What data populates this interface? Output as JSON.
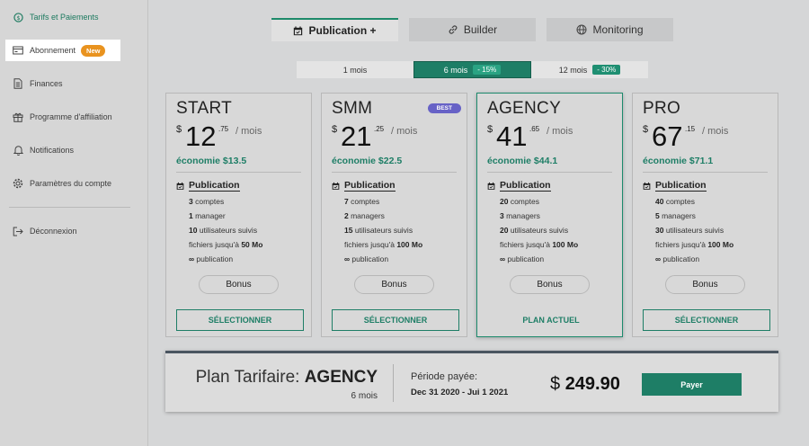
{
  "sidebar": {
    "items": [
      {
        "label": "Tarifs et Paiements",
        "icon": "dollar-circle-icon"
      },
      {
        "label": "Abonnement",
        "icon": "card-icon",
        "badge": "New"
      },
      {
        "label": "Finances",
        "icon": "document-icon"
      },
      {
        "label": "Programme d'affiliation",
        "icon": "gift-icon"
      },
      {
        "label": "Notifications",
        "icon": "bell-icon"
      },
      {
        "label": "Paramètres du compte",
        "icon": "gear-icon"
      },
      {
        "label": "Déconnexion",
        "icon": "logout-icon"
      }
    ]
  },
  "tabs": [
    {
      "label": "Publication +",
      "icon": "calendar-icon",
      "active": true
    },
    {
      "label": "Builder",
      "icon": "link-icon",
      "active": false
    },
    {
      "label": "Monitoring",
      "icon": "globe-icon",
      "active": false
    }
  ],
  "periods": [
    {
      "label": "1 mois",
      "discount": ""
    },
    {
      "label": "6 mois",
      "discount": "- 15%",
      "active": true
    },
    {
      "label": "12 mois",
      "discount": "- 30%"
    }
  ],
  "plans": [
    {
      "name": "START",
      "currency": "$",
      "price_int": "12",
      "price_cents": ".75",
      "per": "/ mois",
      "economy": "économie $13.5",
      "feature_title": "Publication",
      "features": [
        {
          "bold": "3",
          "text": " comptes"
        },
        {
          "bold": "1",
          "text": " manager"
        },
        {
          "bold": "10",
          "text": " utilisateurs suivis"
        },
        {
          "text": "fichiers jusqu'à ",
          "bold_after": "50 Mo"
        },
        {
          "bold": "∞",
          "text": " publication"
        }
      ],
      "bonus": "Bonus",
      "action": "SÉLECTIONNER"
    },
    {
      "name": "SMM",
      "badge": "BEST",
      "currency": "$",
      "price_int": "21",
      "price_cents": ".25",
      "per": "/ mois",
      "economy": "économie $22.5",
      "feature_title": "Publication",
      "features": [
        {
          "bold": "7",
          "text": " comptes"
        },
        {
          "bold": "2",
          "text": " managers"
        },
        {
          "bold": "15",
          "text": " utilisateurs suivis"
        },
        {
          "text": "fichiers jusqu'à ",
          "bold_after": "100 Mo"
        },
        {
          "bold": "∞",
          "text": " publication"
        }
      ],
      "bonus": "Bonus",
      "action": "SÉLECTIONNER"
    },
    {
      "name": "AGENCY",
      "currency": "$",
      "price_int": "41",
      "price_cents": ".65",
      "per": "/ mois",
      "economy": "économie $44.1",
      "feature_title": "Publication",
      "features": [
        {
          "bold": "20",
          "text": " comptes"
        },
        {
          "bold": "3",
          "text": " managers"
        },
        {
          "bold": "20",
          "text": " utilisateurs suivis"
        },
        {
          "text": "fichiers jusqu'à ",
          "bold_after": "100 Mo"
        },
        {
          "bold": "∞",
          "text": " publication"
        }
      ],
      "bonus": "Bonus",
      "action": "PLAN ACTUEL",
      "current": true
    },
    {
      "name": "PRO",
      "currency": "$",
      "price_int": "67",
      "price_cents": ".15",
      "per": "/ mois",
      "economy": "économie $71.1",
      "feature_title": "Publication",
      "features": [
        {
          "bold": "40",
          "text": " comptes"
        },
        {
          "bold": "5",
          "text": " managers"
        },
        {
          "bold": "30",
          "text": " utilisateurs suivis"
        },
        {
          "text": "fichiers jusqu'à ",
          "bold_after": "100 Mo"
        },
        {
          "bold": "∞",
          "text": " publication"
        }
      ],
      "bonus": "Bonus",
      "action": "SÉLECTIONNER"
    }
  ],
  "summary": {
    "plan_label": "Plan Tarifaire: ",
    "plan_name": "AGENCY",
    "months": "6 mois",
    "period_label": "Période payée:",
    "period": "Dec 31 2020 - Jui 1 2021",
    "currency": "$",
    "total": "249.90",
    "pay_label": "Payer"
  },
  "colors": {
    "accent": "#1e7e66",
    "badge_new": "#e9931f",
    "badge_best": "#6762c6"
  }
}
